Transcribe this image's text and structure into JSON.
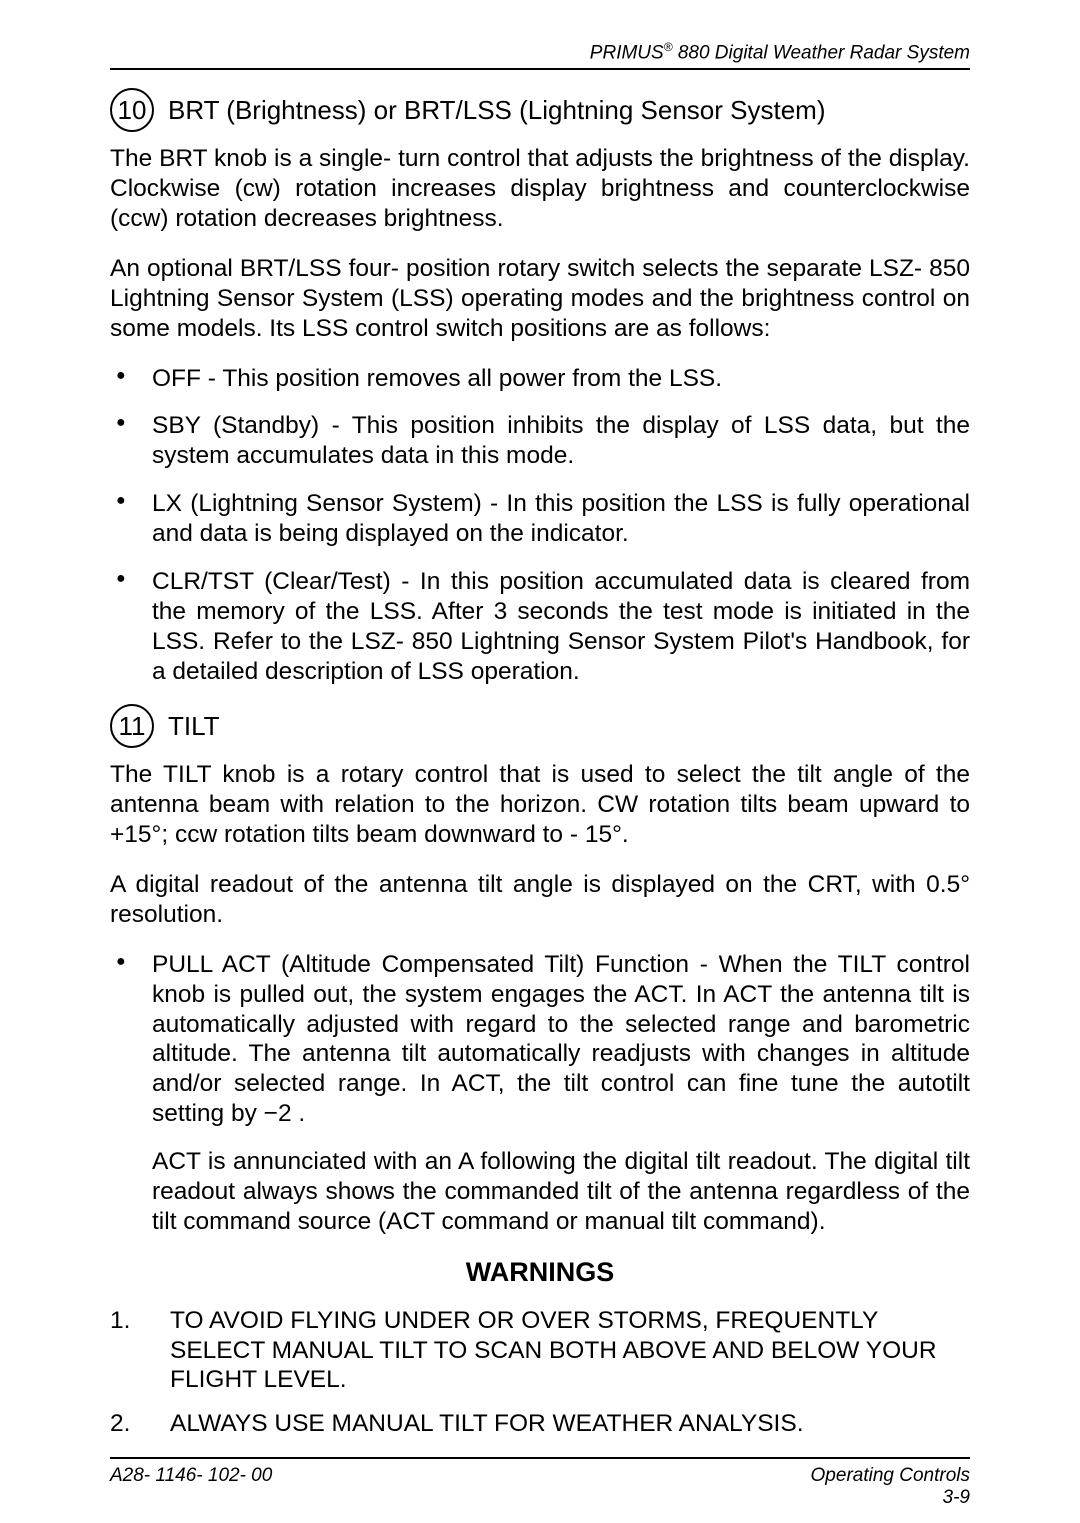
{
  "header": {
    "product": "PRIMUS",
    "trademark": "®",
    "model": " 880 Digital Weather Radar System"
  },
  "section10": {
    "num": "10",
    "title": "BRT (Brightness) or BRT/LSS (Lightning Sensor System)",
    "para1": "The BRT knob is a single- turn control that adjusts the brightness of the display. Clockwise (cw) rotation increases display brightness and counterclockwise (ccw) rotation decreases brightness.",
    "para2": "An optional BRT/LSS four- position rotary switch selects the separate LSZ- 850 Lightning Sensor System (LSS) operating modes and the brightness control on some models. Its LSS control switch positions are as follows:",
    "bullets": [
      "OFF - This position removes all power from the LSS.",
      "SBY (Standby) - This position inhibits the display of LSS data, but the system accumulates data in this mode.",
      "LX (Lightning Sensor System) - In this position the LSS is fully operational and data is being displayed on the indicator.",
      "CLR/TST (Clear/Test) - In this position accumulated data is cleared from the memory of the LSS. After 3 seconds the test mode is initiated in the LSS. Refer to the LSZ- 850 Lightning Sensor System Pilot's Handbook, for a detailed description of LSS operation."
    ]
  },
  "section11": {
    "num": "11",
    "title": "TILT",
    "para1": "The TILT knob is a rotary control that is used to select the tilt angle of the antenna beam with relation to the horizon. CW rotation tilts beam upward to +15°; ccw rotation tilts beam downward to - 15°.",
    "para2": "A digital readout of the antenna tilt angle is displayed on the CRT, with 0.5° resolution.",
    "bullets": [
      "PULL ACT (Altitude Compensated Tilt) Function - When the TILT control knob is pulled out, the system engages the ACT. In ACT the antenna tilt is automatically adjusted with regard to the selected range and barometric altitude. The antenna tilt automatically readjusts with changes in altitude and/or selected range. In ACT, the tilt control can fine tune the autotilt setting by −2 ."
    ],
    "para3": "ACT is annunciated with an A following the digital tilt readout. The digital tilt readout always shows the commanded tilt of the antenna regardless of the tilt command source (ACT command or manual tilt command)."
  },
  "warnings": {
    "heading": "WARNINGS",
    "items": [
      {
        "num": "1.",
        "text": "TO AVOID FLYING UNDER OR OVER STORMS, FREQUENTLY SELECT MANUAL TILT TO SCAN BOTH ABOVE AND BELOW YOUR FLIGHT LEVEL."
      },
      {
        "num": "2.",
        "text": "ALWAYS USE MANUAL TILT FOR WEATHER ANALYSIS."
      }
    ]
  },
  "footer": {
    "left": "A28- 1146- 102- 00",
    "right_top": "Operating Controls",
    "right_bottom": "3-9"
  }
}
